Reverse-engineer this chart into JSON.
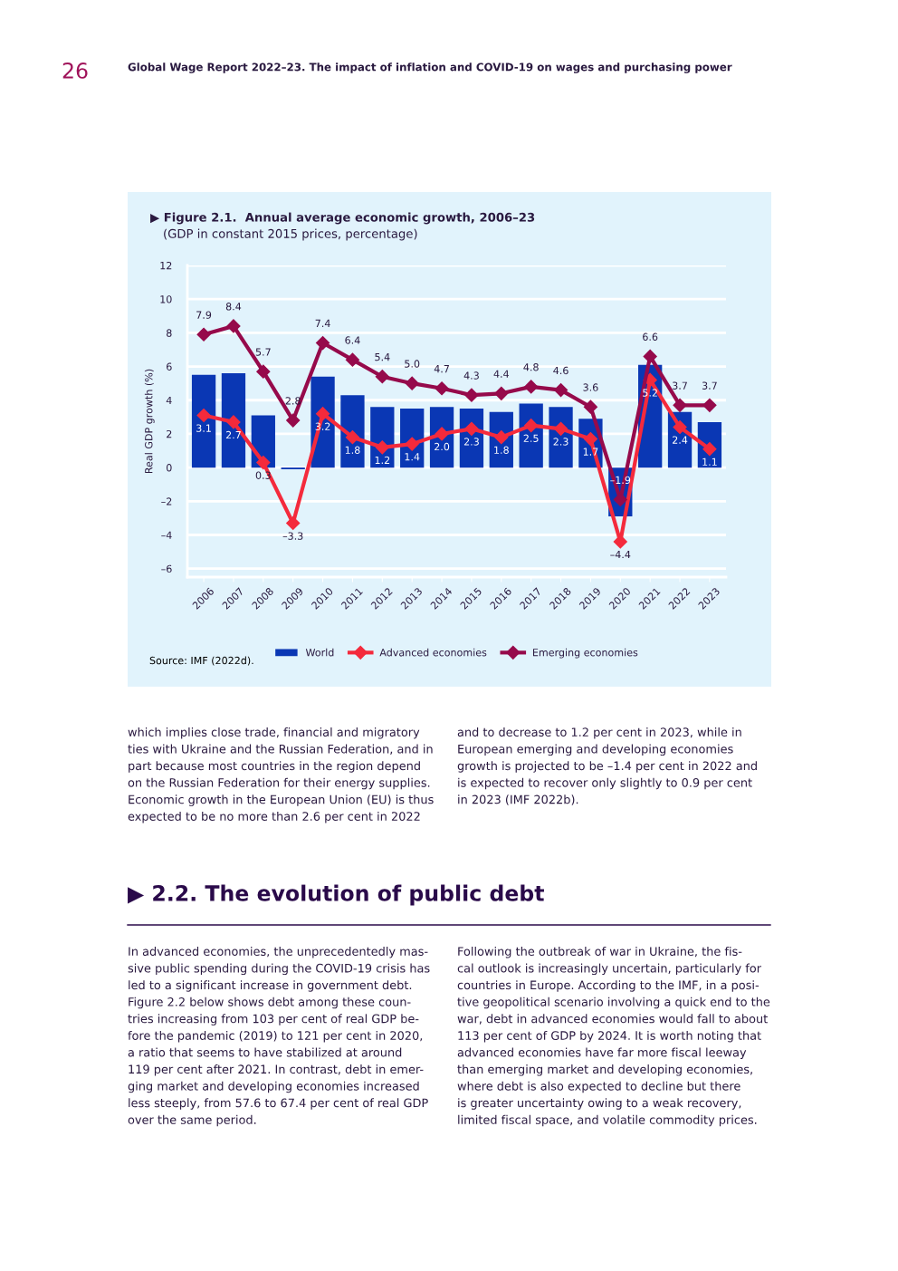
{
  "chart_data": {
    "type": "bar",
    "title": "▶ Figure 2.1.  Annual average economic growth, 2006–23",
    "subtitle": "(GDP in constant 2015 prices, percentage)",
    "ylabel": "Real GDP growth (%)",
    "categories": [
      "2006",
      "2007",
      "2008",
      "2009",
      "2010",
      "2011",
      "2012",
      "2013",
      "2014",
      "2015",
      "2016",
      "2017",
      "2018",
      "2019",
      "2020",
      "2021",
      "2022",
      "2023"
    ],
    "series": [
      {
        "name": "World",
        "color": "#0a37b4",
        "values": [
          5.5,
          5.6,
          3.1,
          -0.1,
          5.4,
          4.3,
          3.6,
          3.5,
          3.6,
          3.5,
          3.3,
          3.8,
          3.6,
          2.9,
          -2.9,
          6.1,
          3.3,
          2.7
        ]
      },
      {
        "name": "Advanced economies",
        "type": "line",
        "color": "#f42a3c",
        "values": [
          3.1,
          2.7,
          0.3,
          -3.3,
          3.2,
          1.8,
          1.2,
          1.4,
          2.0,
          2.3,
          1.8,
          2.5,
          2.3,
          1.7,
          -4.4,
          5.2,
          2.4,
          1.1
        ],
        "value_labels": [
          "3.1",
          "2.7",
          "0.3",
          "–3.3",
          "3.2",
          "1.8",
          "1.2",
          "1.4",
          "2.0",
          "2.3",
          "1.8",
          "2.5",
          "2.3",
          "1.7",
          "–4.4",
          "5.2",
          "2.4",
          "1.1"
        ]
      },
      {
        "name": "Emerging economies",
        "type": "line",
        "color": "#960a4b",
        "values": [
          7.9,
          8.4,
          5.7,
          2.8,
          7.4,
          6.4,
          5.4,
          5.0,
          4.7,
          4.3,
          4.4,
          4.8,
          4.6,
          3.6,
          -1.9,
          6.6,
          3.7,
          3.7
        ],
        "value_labels": [
          "7.9",
          "8.4",
          "5.7",
          "2.8",
          "7.4",
          "6.4",
          "5.4",
          "5.0",
          "4.7",
          "4.3",
          "4.4",
          "4.8",
          "4.6",
          "3.6",
          "–1.9",
          "6.6",
          "3.7",
          "3.7"
        ]
      }
    ],
    "marker": "diamond",
    "ylim": [
      -6.5,
      12
    ],
    "yticks": [
      {
        "value": -6,
        "label": "–6"
      },
      {
        "value": -4,
        "label": "–4"
      },
      {
        "value": -2,
        "label": "–2"
      },
      0,
      2,
      4,
      6,
      8,
      10,
      12
    ],
    "grid": "y",
    "legend": "bottom",
    "annotations": [
      "26",
      "Global Wage Report 2022–23. The impact of inflation and COVID-19 on wages and purchasing power",
      "Source: IMF (2022d).",
      "which implies close trade, financial and migratory\nties with Ukraine and the Russian Federation, and in\npart because most countries in the region depend\non the Russian Federation for their energy supplies.\nEconomic growth in the European Union (EU) is thus\nexpected to be no more than 2.6 per cent in 2022",
      "and to decrease to 1.2 per cent in 2023, while in\nEuropean emerging and developing economies\ngrowth is projected to be –1.4 per cent in 2022 and\nis expected to recover only slightly to 0.9 per cent\nin 2023 (IMF 2022b).",
      "▶ 2.2. The evolution of public debt",
      "In advanced economies, the unprecedentedly mas-\nsive public spending during the COVID-19 crisis has\nled to a significant increase in government debt.\nFigure 2.2 below shows debt among these coun-\ntries increasing from 103 per cent of real GDP be-\nfore the pandemic (2019) to 121 per cent in 2020,\na ratio that seems to have stabilized at around\n119 per cent after 2021. In contrast, debt in emer-\nging market and developing economies increased\nless steeply, from 57.6 to 67.4 per cent of real GDP\nover the same period.",
      "Following the outbreak of war in Ukraine, the fis-\ncal outlook is increasingly uncertain, particularly for\ncountries in Europe. According to the IMF, in a posi-\ntive geopolitical scenario involving a quick end to the\nwar, debt in advanced economies would fall to about\n113 per cent of GDP by 2024. It is worth noting that\nadvanced economies have far more fiscal leeway\nthan emerging market and developing economies,\nwhere debt is also expected to decline but there\nis greater uncertainty owing to a weak recovery,\nlimited fiscal space, and volatile commodity prices."
    ]
  }
}
